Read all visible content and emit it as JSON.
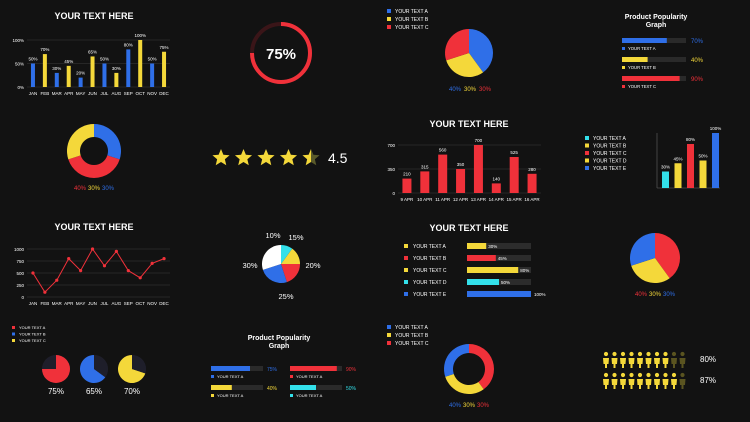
{
  "colors": {
    "blue": "#2f6fe8",
    "yellow": "#f4d83a",
    "red": "#f0313a",
    "cyan": "#33e0ea",
    "grid": "#3a3a3a",
    "text": "#ffffff",
    "bg": "#121212"
  },
  "chart_data": [
    {
      "id": "monthly-bars",
      "type": "bar",
      "title": "YOUR TEXT HERE",
      "categories": [
        "JAN",
        "FEB",
        "MAR",
        "APR",
        "MAY",
        "JUN",
        "JUL",
        "AUG",
        "SEP",
        "OCT",
        "NOV",
        "DEC"
      ],
      "values": [
        50,
        70,
        30,
        45,
        20,
        65,
        50,
        30,
        80,
        100,
        50,
        75
      ],
      "value_labels": [
        "50%",
        "70%",
        "30%",
        "45%",
        "20%",
        "65%",
        "50%",
        "30%",
        "80%",
        "100%",
        "50%",
        "75%"
      ],
      "colors": [
        "blue",
        "yellow",
        "blue",
        "yellow",
        "blue",
        "yellow",
        "blue",
        "yellow",
        "blue",
        "yellow",
        "blue",
        "yellow"
      ],
      "ylim": [
        0,
        100
      ],
      "yticks": [
        "0%",
        "50%",
        "100%"
      ],
      "grid": true
    },
    {
      "id": "progress-ring",
      "type": "pie",
      "values": [
        75
      ],
      "label": "75%",
      "color": "red"
    },
    {
      "id": "top-pie",
      "type": "pie",
      "legend": [
        "YOUR TEXT A",
        "YOUR TEXT B",
        "YOUR TEXT C"
      ],
      "values": [
        40,
        30,
        30
      ],
      "labels": [
        "40%",
        "30%",
        "30%"
      ],
      "colors": [
        "blue",
        "yellow",
        "red"
      ]
    },
    {
      "id": "product-popularity-1",
      "type": "bar",
      "title": "Product Popularity Graph",
      "series": [
        {
          "name": "YOUR TEXT A",
          "value": 70,
          "label": "70%",
          "color": "blue"
        },
        {
          "name": "YOUR TEXT B",
          "value": 40,
          "label": "40%",
          "color": "yellow"
        },
        {
          "name": "YOUR TEXT C",
          "value": 90,
          "label": "90%",
          "color": "red"
        }
      ]
    },
    {
      "id": "donut-1",
      "type": "pie",
      "values": [
        40,
        30,
        30
      ],
      "labels": [
        "40%",
        "30%",
        "30%"
      ],
      "colors": [
        "red",
        "yellow",
        "blue"
      ]
    },
    {
      "id": "star-rating",
      "type": "table",
      "value": 4.5,
      "max": 5,
      "label": "4.5"
    },
    {
      "id": "april-bars",
      "type": "bar",
      "title": "YOUR TEXT HERE",
      "categories": [
        "9 APR",
        "10 APR",
        "11 APR",
        "12 APR",
        "13 APR",
        "14 APR",
        "15 APR",
        "16 APR"
      ],
      "values": [
        210,
        315,
        560,
        350,
        700,
        140,
        525,
        280
      ],
      "ylim": [
        0,
        700
      ],
      "yticks": [
        "0",
        "350",
        "700"
      ],
      "color": "red",
      "grid": true
    },
    {
      "id": "vertical-bars-legend",
      "type": "bar",
      "legend": [
        "YOUR TEXT A",
        "YOUR TEXT B",
        "YOUR TEXT C",
        "YOUR TEXT D",
        "YOUR TEXT E"
      ],
      "values": [
        30,
        45,
        80,
        50,
        100
      ],
      "labels": [
        "30%",
        "45%",
        "80%",
        "50%",
        "100%"
      ],
      "colors": [
        "cyan",
        "yellow",
        "red",
        "yellow",
        "blue"
      ]
    },
    {
      "id": "line-chart",
      "type": "line",
      "title": "YOUR TEXT HERE",
      "categories": [
        "JAN",
        "FEB",
        "MAR",
        "APR",
        "MAY",
        "JUN",
        "JUL",
        "AUG",
        "SEP",
        "OCT",
        "NOV",
        "DEC"
      ],
      "values": [
        500,
        100,
        350,
        800,
        550,
        1000,
        650,
        950,
        550,
        400,
        700,
        800
      ],
      "ylim": [
        0,
        1000
      ],
      "yticks": [
        "0",
        "250",
        "500",
        "750",
        "1000"
      ],
      "color": "red",
      "grid": true
    },
    {
      "id": "pie-4",
      "type": "pie",
      "values": [
        10,
        15,
        20,
        25,
        30
      ],
      "labels": [
        "10%",
        "15%",
        "20%",
        "25%",
        "30%"
      ],
      "colors": [
        "cyan",
        "yellow",
        "red",
        "blue",
        "white"
      ]
    },
    {
      "id": "horizontal-bars",
      "type": "bar",
      "title": "YOUR TEXT HERE",
      "series": [
        {
          "name": "YOUR TEXT A",
          "value": 30,
          "label": "30%",
          "color": "yellow"
        },
        {
          "name": "YOUR TEXT B",
          "value": 45,
          "label": "45%",
          "color": "red"
        },
        {
          "name": "YOUR TEXT C",
          "value": 80,
          "label": "80%",
          "color": "yellow"
        },
        {
          "name": "YOUR TEXT D",
          "value": 50,
          "label": "50%",
          "color": "cyan"
        },
        {
          "name": "YOUR TEXT E",
          "value": 100,
          "label": "100%",
          "color": "blue"
        }
      ]
    },
    {
      "id": "pie-right",
      "type": "pie",
      "values": [
        40,
        30,
        30
      ],
      "labels": [
        "40%",
        "30%",
        "30%"
      ],
      "colors": [
        "red",
        "yellow",
        "blue"
      ]
    },
    {
      "id": "three-pies",
      "type": "pie",
      "legend": [
        "YOUR TEXT A",
        "YOUR TEXT B",
        "YOUR TEXT C"
      ],
      "items": [
        {
          "value": 75,
          "label": "75%",
          "color": "red"
        },
        {
          "value": 65,
          "label": "65%",
          "color": "blue"
        },
        {
          "value": 70,
          "label": "70%",
          "color": "yellow"
        }
      ]
    },
    {
      "id": "product-popularity-2",
      "type": "bar",
      "title": "Product Popularity Graph",
      "series": [
        {
          "name": "YOUR TEXT A",
          "value": 75,
          "label": "75%",
          "color": "blue"
        },
        {
          "name": "YOUR TEXT A",
          "value": 40,
          "label": "40%",
          "color": "yellow"
        },
        {
          "name": "YOUR TEXT A",
          "value": 90,
          "label": "90%",
          "color": "red"
        },
        {
          "name": "YOUR TEXT A",
          "value": 50,
          "label": "50%",
          "color": "cyan"
        }
      ]
    },
    {
      "id": "donut-2",
      "type": "pie",
      "legend": [
        "YOUR TEXT A",
        "YOUR TEXT B",
        "YOUR TEXT C"
      ],
      "values": [
        40,
        30,
        30
      ],
      "labels": [
        "40%",
        "30%",
        "30%"
      ],
      "colors": [
        "red",
        "yellow",
        "blue"
      ]
    },
    {
      "id": "people-icons",
      "type": "bar",
      "rows": [
        {
          "value": 80,
          "label": "80%",
          "color": "yellow"
        },
        {
          "value": 87,
          "label": "87%",
          "color": "yellow"
        }
      ]
    }
  ]
}
